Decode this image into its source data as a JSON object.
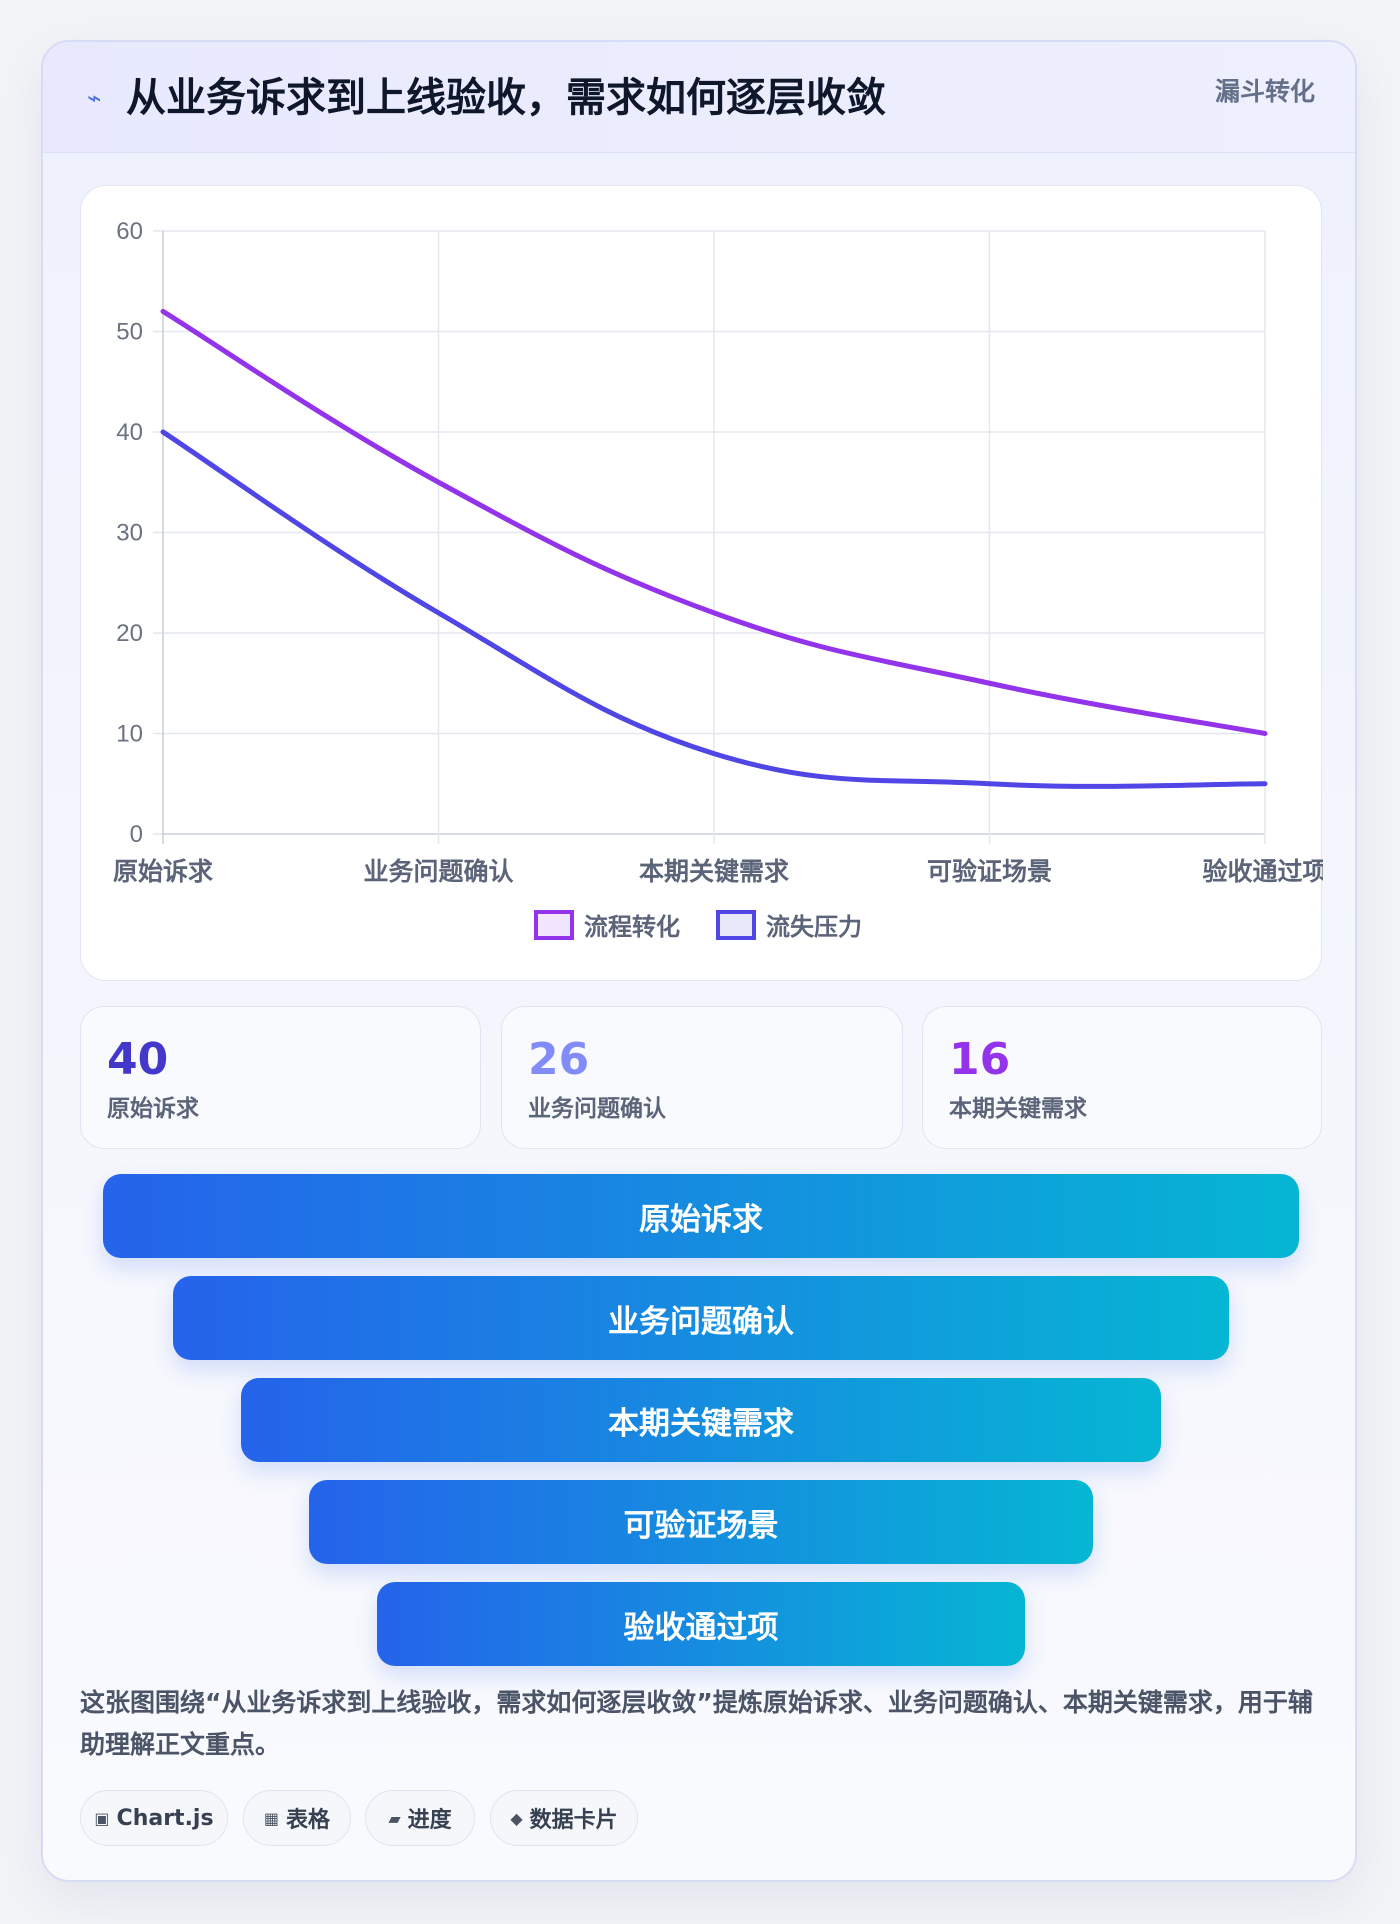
{
  "header": {
    "icon": "lightning-icon",
    "title": "从业务诉求到上线验收，需求如何逐层收敛",
    "tag": "漏斗转化"
  },
  "chart_data": {
    "type": "line",
    "categories": [
      "原始诉求",
      "业务问题确认",
      "本期关键需求",
      "可验证场景",
      "验收通过项"
    ],
    "series": [
      {
        "name": "流程转化",
        "values": [
          52,
          35,
          22,
          15,
          10
        ],
        "color": "#9333ea",
        "fill": "#f1e6fd"
      },
      {
        "name": "流失压力",
        "values": [
          40,
          22,
          8,
          5,
          5
        ],
        "color": "#4f46e5",
        "fill": "#e9e8fb"
      }
    ],
    "ylim": [
      0,
      60
    ],
    "yticks": [
      "0",
      "10",
      "20",
      "30",
      "40",
      "50",
      "60"
    ],
    "grid": true,
    "legend": "bottom"
  },
  "stats": [
    {
      "value": "40",
      "label": "原始诉求",
      "color": "#4338ca"
    },
    {
      "value": "26",
      "label": "业务问题确认",
      "color": "#818cf8"
    },
    {
      "value": "16",
      "label": "本期关键需求",
      "color": "#9333ea"
    }
  ],
  "funnel": [
    "原始诉求",
    "业务问题确认",
    "本期关键需求",
    "可验证场景",
    "验收通过项"
  ],
  "description": "这张图围绕“从业务诉求到上线验收，需求如何逐层收敛”提炼原始诉求、业务问题确认、本期关键需求，用于辅助理解正文重点。",
  "pills": [
    {
      "icon": "chip-icon",
      "glyph": "▣",
      "label": "Chart.js"
    },
    {
      "icon": "table-icon",
      "glyph": "▦",
      "label": "表格"
    },
    {
      "icon": "progress-icon",
      "glyph": "▰",
      "label": "进度"
    },
    {
      "icon": "diamond-icon",
      "glyph": "◆",
      "label": "数据卡片"
    }
  ]
}
